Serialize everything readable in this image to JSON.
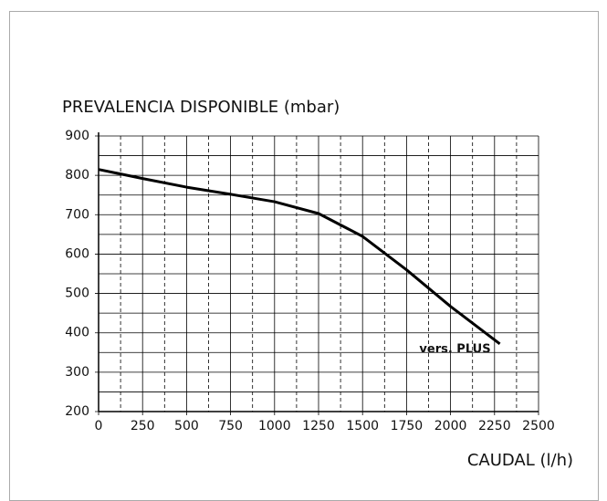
{
  "chart_data": {
    "type": "line",
    "y_label": "PREVALENCIA DISPONIBLE (mbar)",
    "x_label": "CAUDAL (l/h)",
    "annotation": "vers. PLUS",
    "x": [
      0,
      250,
      500,
      750,
      1000,
      1250,
      1500,
      1750,
      2000,
      2280
    ],
    "series": [
      {
        "name": "vers. PLUS",
        "color": "#000000",
        "values": [
          815,
          792,
          770,
          752,
          733,
          703,
          645,
          560,
          467,
          372
        ]
      }
    ],
    "xlim": [
      0,
      2500
    ],
    "xticks": [
      0,
      250,
      500,
      750,
      1000,
      1250,
      1500,
      1750,
      2000,
      2250,
      2500
    ],
    "ylim": [
      200,
      900
    ],
    "yticks": [
      200,
      300,
      400,
      500,
      600,
      700,
      800,
      900
    ],
    "grid": true
  }
}
